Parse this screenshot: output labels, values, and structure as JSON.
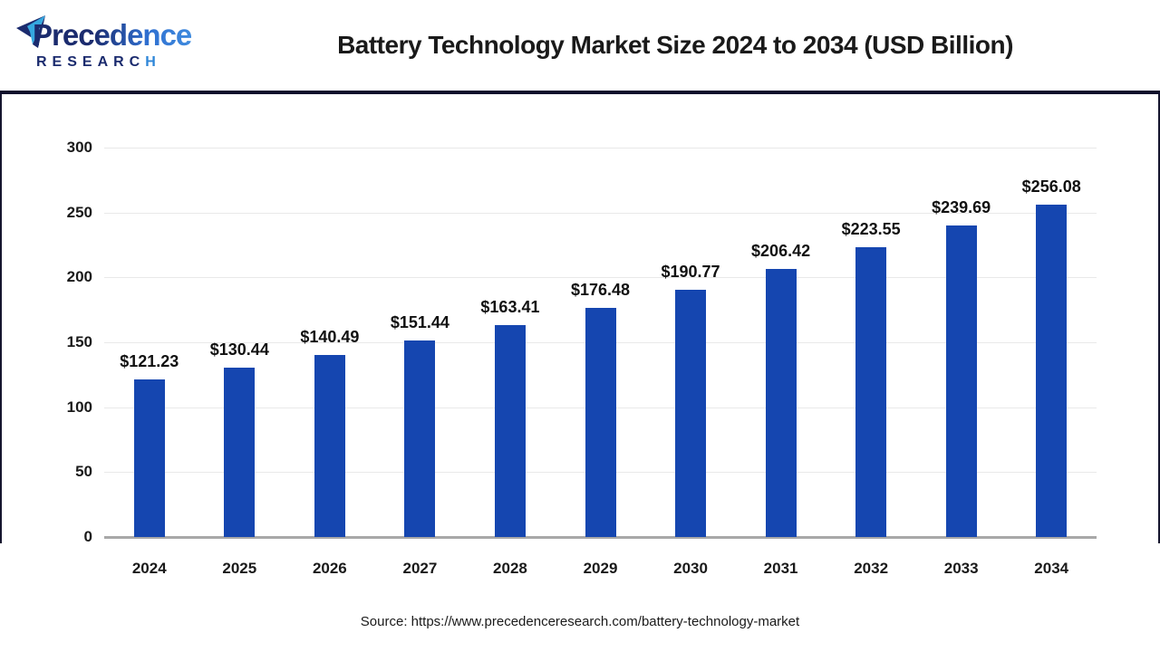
{
  "header": {
    "logo": {
      "brand": "Precedence",
      "research_main": "RESEARC",
      "research_last": "H"
    },
    "title": "Battery Technology Market Size 2024 to 2034 (USD Billion)"
  },
  "chart_data": {
    "type": "bar",
    "title": "Battery Technology Market Size 2024 to 2034 (USD Billion)",
    "categories": [
      "2024",
      "2025",
      "2026",
      "2027",
      "2028",
      "2029",
      "2030",
      "2031",
      "2032",
      "2033",
      "2034"
    ],
    "values": [
      121.23,
      130.44,
      140.49,
      151.44,
      163.41,
      176.48,
      190.77,
      206.42,
      223.55,
      239.69,
      256.08
    ],
    "value_labels": [
      "$121.23",
      "$130.44",
      "$140.49",
      "$151.44",
      "$163.41",
      "$176.48",
      "$190.77",
      "$206.42",
      "$223.55",
      "$239.69",
      "$256.08"
    ],
    "xlabel": "",
    "ylabel": "",
    "ylim": [
      0,
      300
    ],
    "yticks": [
      0,
      50,
      100,
      150,
      200,
      250,
      300
    ],
    "grid": "horizontal",
    "legend": "none",
    "bar_color": "#1546b0"
  },
  "footer": {
    "source": "Source: https://www.precedenceresearch.com/battery-technology-market"
  },
  "colors": {
    "bar_blue": "#1546b0",
    "brand_navy": "#1b2b6e",
    "brand_blue": "#2f6fd0",
    "brand_light_blue": "#35a8e0",
    "header_separator": "#0d0d2b",
    "gridline": "#e9e9e9",
    "axis_baseline": "#a8a8a8",
    "text_black": "#1a1a1a"
  }
}
